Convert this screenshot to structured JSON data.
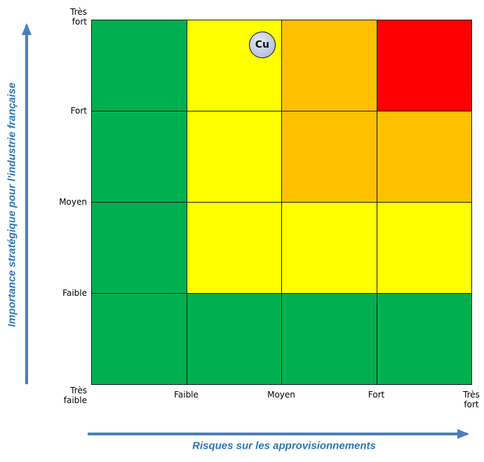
{
  "y_axis": {
    "title": "Importance stratégique pour l'industrie française",
    "ticks": [
      "Très\nfaible",
      "Faible",
      "Moyen",
      "Fort",
      "Très\nfort"
    ]
  },
  "x_axis": {
    "title": "Risques sur les approvisionnements",
    "ticks": [
      "Faible",
      "Moyen",
      "Fort",
      "Très\nfort"
    ]
  },
  "colors": {
    "green": "#00b050",
    "yellow": "#ffff00",
    "orange": "#ffc000",
    "red": "#ff0000",
    "axis_arrow": "#4a7ebb"
  },
  "grid": {
    "rows_top_to_bottom": [
      [
        "green",
        "yellow",
        "orange",
        "red"
      ],
      [
        "green",
        "yellow",
        "orange",
        "orange"
      ],
      [
        "green",
        "yellow",
        "yellow",
        "yellow"
      ],
      [
        "green",
        "green",
        "green",
        "green"
      ]
    ]
  },
  "marker": {
    "label": "Cu",
    "risk_level": "Faible–Moyen",
    "importance_level": "Fort–Très fort"
  }
}
